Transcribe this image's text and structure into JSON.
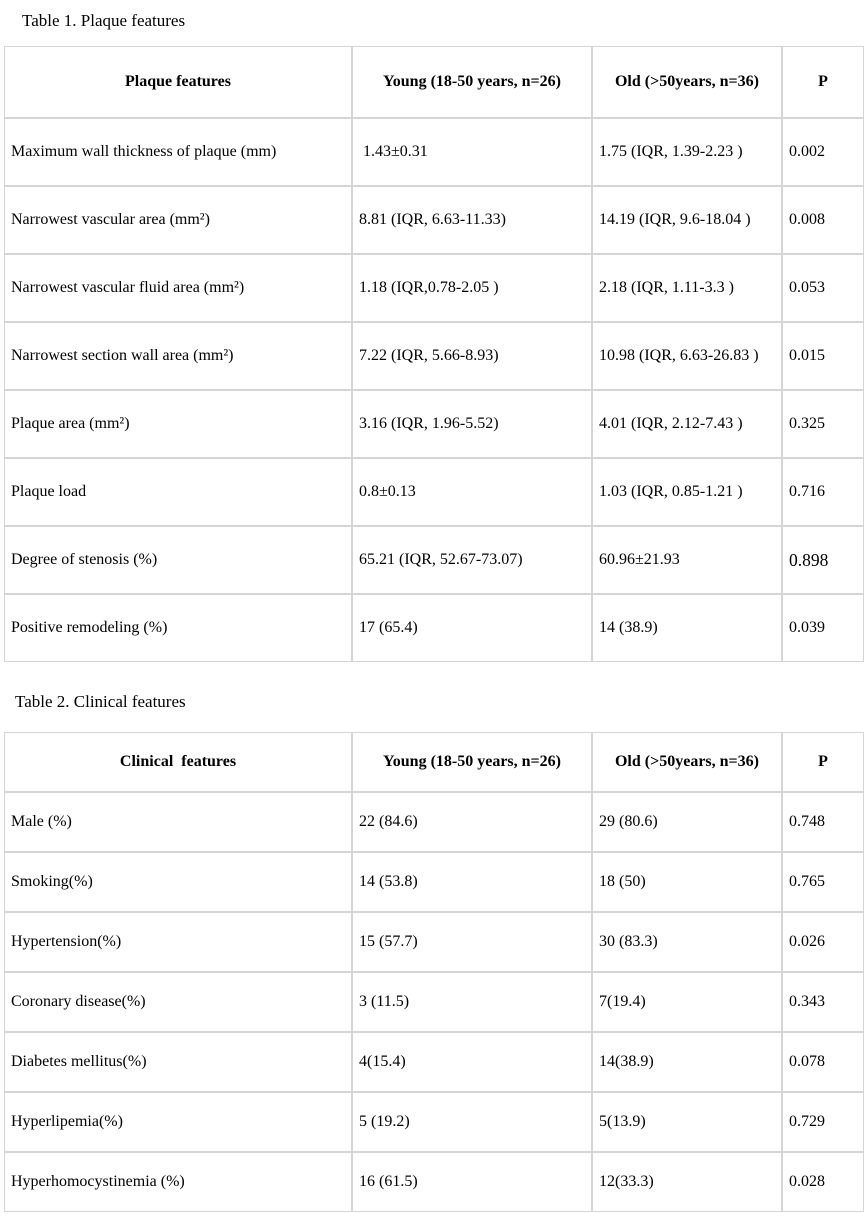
{
  "page": {
    "background": "#ffffff",
    "border_color": "#d5d5d5",
    "text_color": "#000000"
  },
  "tables": [
    {
      "title": "Table 1. Plaque features",
      "headers": [
        "Plaque features",
        "Young (18-50 years, n=26)",
        "Old (>50years, n=36)",
        "P"
      ],
      "rows": [
        [
          "Maximum wall thickness of plaque (mm)",
          " 1.43±0.31",
          "1.75 (IQR, 1.39-2.23 )",
          "0.002"
        ],
        [
          "Narrowest vascular area (mm²)",
          "8.81 (IQR, 6.63-11.33)",
          "14.19 (IQR, 9.6-18.04 )",
          "0.008"
        ],
        [
          "Narrowest vascular fluid area (mm²)",
          "1.18 (IQR,0.78-2.05 )",
          "2.18 (IQR, 1.11-3.3 )",
          "0.053"
        ],
        [
          "Narrowest section wall area (mm²)",
          "7.22 (IQR, 5.66-8.93)",
          "10.98 (IQR, 6.63-26.83 )",
          "0.015"
        ],
        [
          "Plaque area (mm²)",
          "3.16 (IQR, 1.96-5.52)",
          "4.01 (IQR, 2.12-7.43 )",
          "0.325"
        ],
        [
          "Plaque load",
          "0.8±0.13",
          "1.03 (IQR, 0.85-1.21 )",
          "0.716"
        ],
        [
          "Degree of stenosis (%)",
          "65.21 (IQR, 52.67-73.07)",
          "60.96±21.93",
          "0.898"
        ],
        [
          "Positive remodeling (%)",
          "17 (65.4)",
          "14 (38.9)",
          "0.039"
        ]
      ]
    },
    {
      "title": "Table 2. Clinical features",
      "headers": [
        "Clinical  features",
        "Young (18-50 years, n=26)",
        "Old (>50years, n=36)",
        "P"
      ],
      "rows": [
        [
          "Male (%)",
          "22 (84.6)",
          "29 (80.6)",
          "0.748"
        ],
        [
          "Smoking(%)",
          "14 (53.8)",
          "18 (50)",
          "0.765"
        ],
        [
          "Hypertension(%)",
          "15 (57.7)",
          "30 (83.3)",
          "0.026"
        ],
        [
          "Coronary disease(%)",
          "3 (11.5)",
          "7(19.4)",
          "0.343"
        ],
        [
          "Diabetes mellitus(%)",
          "4(15.4)",
          "14(38.9)",
          "0.078"
        ],
        [
          "Hyperlipemia(%)",
          "5 (19.2)",
          "5(13.9)",
          "0.729"
        ],
        [
          "Hyperhomocystinemia (%)",
          "16 (61.5)",
          "12(33.3)",
          "0.028"
        ]
      ]
    }
  ]
}
